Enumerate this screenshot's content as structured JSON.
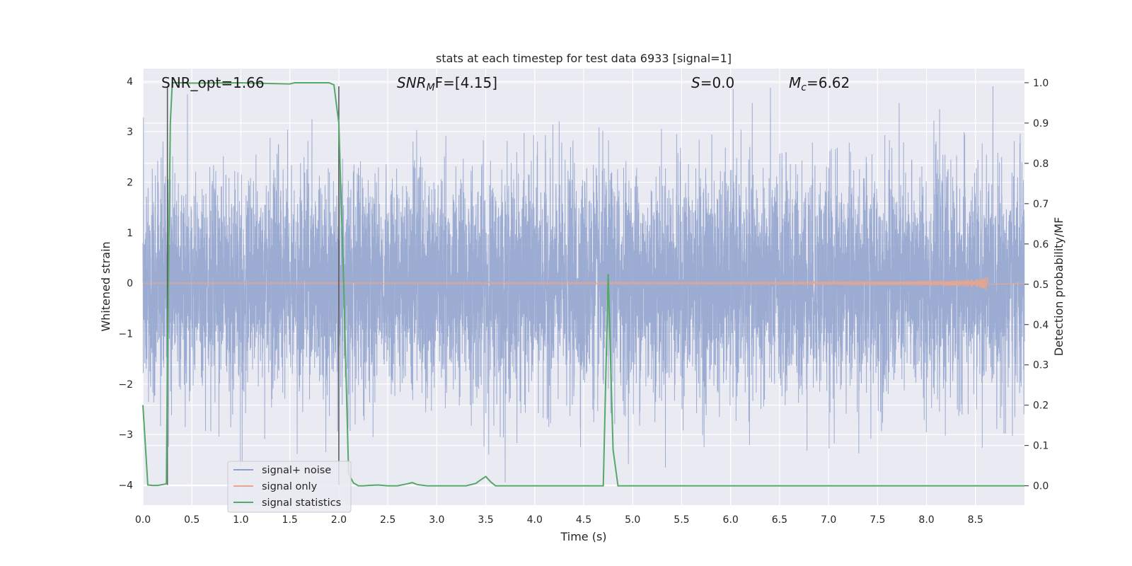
{
  "chart_data": {
    "type": "line",
    "title": "stats at each timestep for test data 6933 [signal=1]",
    "xlabel": "Time (s)",
    "ylabel": "Whitened strain",
    "y2label": "Detection probability/MF",
    "xlim": [
      0,
      9.0
    ],
    "ylim": [
      -4.4,
      4.25
    ],
    "y2lim": [
      -0.048,
      1.035
    ],
    "x_ticks": [
      "0.0",
      "0.5",
      "1.0",
      "1.5",
      "2.0",
      "2.5",
      "3.0",
      "3.5",
      "4.0",
      "4.5",
      "5.0",
      "5.5",
      "6.0",
      "6.5",
      "7.0",
      "7.5",
      "8.0",
      "8.5"
    ],
    "y_ticks": [
      "−4",
      "−3",
      "−2",
      "−1",
      "0",
      "1",
      "2",
      "3",
      "4"
    ],
    "y2_ticks": [
      "0.0",
      "0.1",
      "0.2",
      "0.3",
      "0.4",
      "0.5",
      "0.6",
      "0.7",
      "0.8",
      "0.9",
      "1.0"
    ],
    "grid": true,
    "legend_position": "lower-left",
    "annotations": {
      "snr_opt": "SNR_opt=1.66",
      "snr_mf_main": "SNR",
      "snr_mf_sub": "M",
      "snr_mf_rest": "F=[4.15]",
      "s_main": "S",
      "s_rest": "=0.0",
      "mc_main": "M",
      "mc_sub": "c",
      "mc_rest": "=6.62"
    },
    "vertical_markers_x": [
      0.25,
      2.0
    ],
    "series": [
      {
        "name": "signal+ noise",
        "color": "#8da0cb",
        "axis": "left",
        "kind": "whitened noise, approx. unit variance, ~8000 samples",
        "amplitude_range": [
          -3.95,
          3.9
        ]
      },
      {
        "name": "signal only",
        "color": "#e9a58b",
        "axis": "left",
        "kind": "chirp growing from ~0 to ~0.2 amplitude, ending at 8.65 s",
        "end_time": 8.65,
        "max_amplitude": 0.2
      },
      {
        "name": "signal statistics",
        "color": "#55a868",
        "axis": "right",
        "x": [
          0.0,
          0.05,
          0.1,
          0.15,
          0.2,
          0.24,
          0.25,
          0.28,
          0.3,
          0.35,
          0.5,
          1.0,
          1.5,
          1.55,
          1.6,
          1.9,
          1.95,
          2.0,
          2.05,
          2.1,
          2.15,
          2.2,
          2.25,
          2.3,
          2.4,
          2.5,
          2.6,
          2.7,
          2.75,
          2.8,
          2.9,
          3.0,
          3.1,
          3.2,
          3.3,
          3.4,
          3.45,
          3.5,
          3.55,
          3.6,
          3.7,
          4.0,
          4.5,
          4.7,
          4.75,
          4.8,
          4.85,
          4.9,
          5.5,
          6.0,
          7.0,
          8.0,
          9.0
        ],
        "values": [
          0.2,
          0.002,
          0.001,
          0.001,
          0.003,
          0.005,
          0.3,
          0.9,
          1.0,
          1.0,
          0.999,
          1.0,
          0.997,
          1.0,
          1.0,
          1.0,
          0.995,
          0.9,
          0.5,
          0.03,
          0.007,
          0.0,
          0.0,
          0.001,
          0.002,
          0.0,
          0.0,
          0.005,
          0.008,
          0.003,
          0.0,
          0.0,
          0.0,
          0.0,
          0.0,
          0.006,
          0.015,
          0.023,
          0.01,
          0.0,
          0.0,
          0.0,
          0.0,
          0.0,
          0.525,
          0.09,
          0.0,
          0.0,
          0.0,
          0.0,
          0.0,
          0.0,
          0.0
        ]
      }
    ]
  }
}
